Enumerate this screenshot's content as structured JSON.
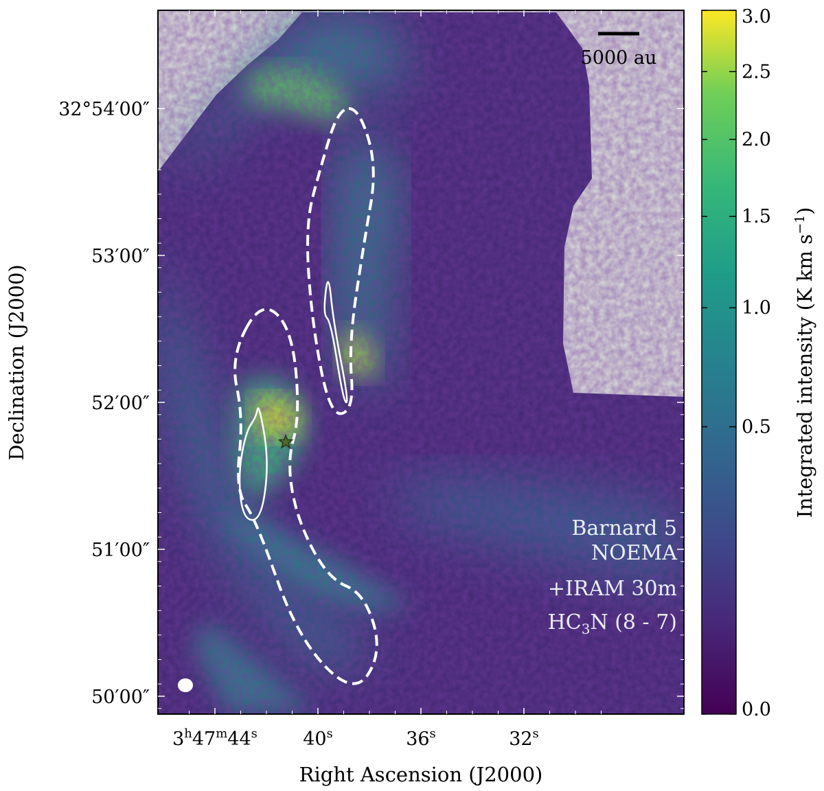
{
  "chart_data": {
    "type": "heatmap",
    "object": "Barnard 5",
    "annotations": [
      "Barnard 5",
      "NOEMA",
      "+IRAM 30m",
      "HC3N (8 - 7)"
    ],
    "xlabel": "Right Ascension (J2000)",
    "ylabel": "Declination (J2000)",
    "x_ticks": [
      {
        "label": "3h47m44s",
        "ra_s": 44
      },
      {
        "label": "40s",
        "ra_s": 40
      },
      {
        "label": "36s",
        "ra_s": 36
      },
      {
        "label": "32s",
        "ra_s": 32
      }
    ],
    "y_ticks": [
      {
        "label": "32°54′00″",
        "dec_arcmin": 54
      },
      {
        "label": "53′00″",
        "dec_arcmin": 53
      },
      {
        "label": "52′00″",
        "dec_arcmin": 52
      },
      {
        "label": "51′00″",
        "dec_arcmin": 51
      },
      {
        "label": "50′00″",
        "dec_arcmin": 50
      }
    ],
    "colorbar": {
      "label": "Integrated intensity (K km s−1)",
      "colormap": "viridis",
      "scale": "sqrt",
      "range": [
        0.0,
        3.0
      ],
      "ticks": [
        0.0,
        0.5,
        1.0,
        1.5,
        2.0,
        2.5,
        3.0
      ],
      "tick_labels": [
        "0.0",
        "0.5",
        "1.0",
        "1.5",
        "2.0",
        "2.5",
        "3.0"
      ]
    },
    "scalebar": {
      "label": "5000 au"
    },
    "source_marker": {
      "symbol": "star",
      "ra_s": 41.25,
      "dec_arcmin": 51.73
    },
    "beam": {
      "shape": "ellipse",
      "color": "#ffffff"
    },
    "contours": [
      {
        "name": "contour-outer-north",
        "style": "dashed",
        "points": [
          [
            38.4,
            54.0
          ],
          [
            37.7,
            53.6
          ],
          [
            38.2,
            53.1
          ],
          [
            38.8,
            52.4
          ],
          [
            38.6,
            51.95
          ],
          [
            39.5,
            51.9
          ],
          [
            40.2,
            52.5
          ],
          [
            40.5,
            53.2
          ],
          [
            39.9,
            53.6
          ],
          [
            39.2,
            54.0
          ]
        ]
      },
      {
        "name": "contour-inner-north",
        "style": "solid",
        "points": [
          [
            39.5,
            52.55
          ],
          [
            39.0,
            52.0
          ],
          [
            38.8,
            52.0
          ],
          [
            39.4,
            52.55
          ],
          [
            39.6,
            52.9
          ],
          [
            39.8,
            52.6
          ]
        ]
      },
      {
        "name": "contour-outer-south",
        "style": "dashed",
        "points": [
          [
            42.2,
            52.7
          ],
          [
            41.0,
            52.5
          ],
          [
            40.7,
            51.9
          ],
          [
            41.2,
            51.6
          ],
          [
            40.8,
            51.2
          ],
          [
            39.6,
            50.8
          ],
          [
            38.2,
            50.7
          ],
          [
            37.5,
            50.3
          ],
          [
            38.6,
            50.0
          ],
          [
            40.8,
            50.4
          ],
          [
            42.4,
            51.2
          ],
          [
            43.2,
            51.4
          ],
          [
            42.9,
            51.9
          ],
          [
            43.4,
            52.3
          ]
        ]
      },
      {
        "name": "contour-inner-south",
        "style": "solid",
        "points": [
          [
            42.3,
            52.0
          ],
          [
            41.9,
            51.6
          ],
          [
            42.2,
            51.2
          ],
          [
            42.9,
            51.2
          ],
          [
            43.1,
            51.5
          ],
          [
            42.8,
            51.8
          ],
          [
            42.4,
            51.9
          ]
        ]
      }
    ]
  }
}
